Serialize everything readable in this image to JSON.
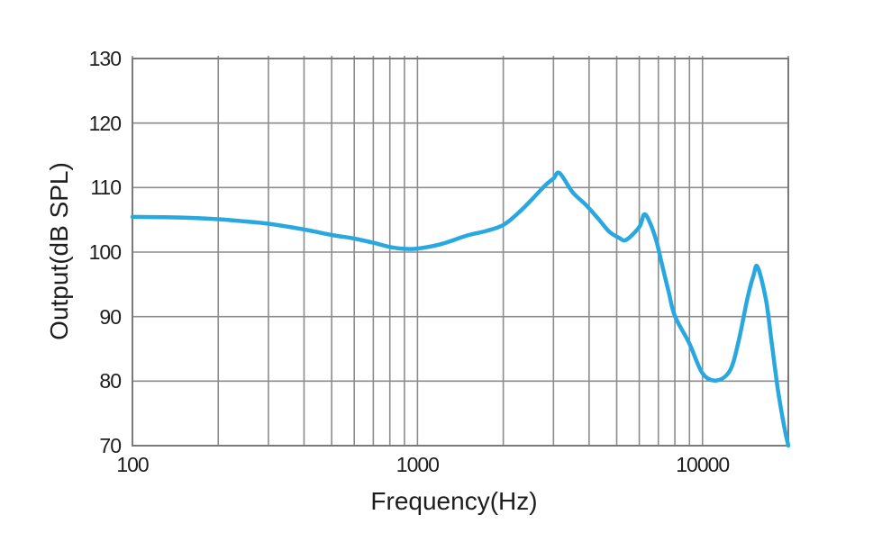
{
  "figure": {
    "background": "#ffffff"
  },
  "chart_data": {
    "type": "line",
    "title": "",
    "xlabel": "Frequency(Hz)",
    "ylabel": "Output(dB SPL)",
    "x_scale": "log",
    "xlim": [
      100,
      20000
    ],
    "ylim": [
      70,
      130
    ],
    "grid": true,
    "legend_position": "none",
    "grid_color": "#8c8c8c",
    "border_color": "#7a7a7a",
    "text_color": "#1d1d1d",
    "x_gridlines": [
      100,
      200,
      300,
      400,
      500,
      600,
      700,
      800,
      900,
      1000,
      2000,
      3000,
      4000,
      5000,
      6000,
      7000,
      8000,
      9000,
      10000,
      20000
    ],
    "x_tick_labels": [
      {
        "value": 100,
        "label": "100"
      },
      {
        "value": 1000,
        "label": "1000"
      },
      {
        "value": 10000,
        "label": "10000"
      }
    ],
    "y_ticks": [
      70,
      80,
      90,
      100,
      110,
      120,
      130
    ],
    "series": [
      {
        "name": "output-spl-response",
        "color": "#29a8e0",
        "stroke_width": 4.5,
        "points": [
          [
            100,
            105.45
          ],
          [
            130,
            105.4
          ],
          [
            160,
            105.3
          ],
          [
            200,
            105.1
          ],
          [
            250,
            104.75
          ],
          [
            300,
            104.4
          ],
          [
            400,
            103.5
          ],
          [
            500,
            102.65
          ],
          [
            600,
            102.1
          ],
          [
            700,
            101.45
          ],
          [
            800,
            100.8
          ],
          [
            900,
            100.5
          ],
          [
            1000,
            100.55
          ],
          [
            1200,
            101.2
          ],
          [
            1500,
            102.6
          ],
          [
            1750,
            103.3
          ],
          [
            2000,
            104.2
          ],
          [
            2250,
            106.0
          ],
          [
            2500,
            108.0
          ],
          [
            2800,
            110.3
          ],
          [
            3000,
            111.4
          ],
          [
            3150,
            112.25
          ],
          [
            3500,
            109.3
          ],
          [
            3900,
            107.3
          ],
          [
            4300,
            105.2
          ],
          [
            4700,
            103.2
          ],
          [
            5100,
            102.2
          ],
          [
            5400,
            101.9
          ],
          [
            6000,
            103.9
          ],
          [
            6250,
            105.85
          ],
          [
            6550,
            104.5
          ],
          [
            6900,
            101.6
          ],
          [
            7200,
            98.2
          ],
          [
            7600,
            93.9
          ],
          [
            8000,
            90.1
          ],
          [
            9000,
            85.8
          ],
          [
            10000,
            81.2
          ],
          [
            11200,
            80.1
          ],
          [
            12500,
            81.7
          ],
          [
            13400,
            86.3
          ],
          [
            14400,
            93.0
          ],
          [
            15100,
            96.4
          ],
          [
            15600,
            97.7
          ],
          [
            16700,
            92.6
          ],
          [
            17500,
            85.8
          ],
          [
            18400,
            78.6
          ],
          [
            19300,
            73.2
          ],
          [
            20000,
            70.0
          ]
        ]
      }
    ]
  }
}
